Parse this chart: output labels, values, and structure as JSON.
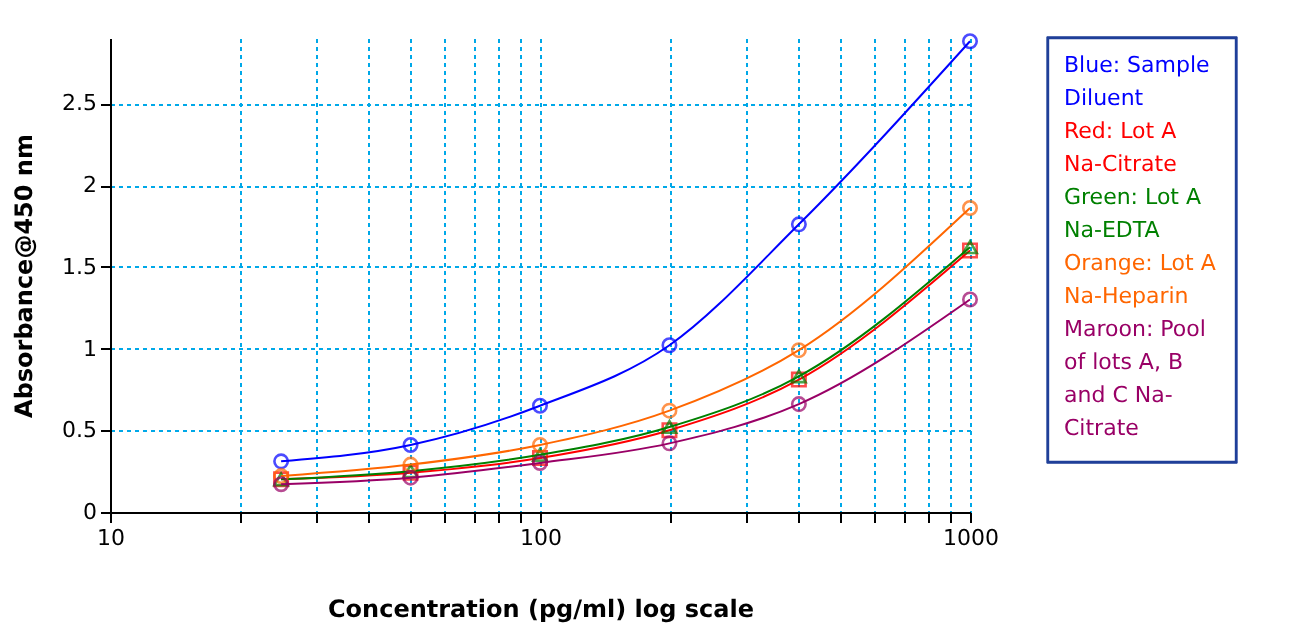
{
  "chart_data": {
    "type": "line",
    "xlabel": "Concentration (pg/ml) log scale",
    "ylabel": "Absorbance@450 nm",
    "x": [
      25,
      50,
      100,
      200,
      400,
      1000
    ],
    "series": [
      {
        "name": "Blue: Sample Diluent",
        "color": "#0000ff",
        "marker": "circle",
        "values": [
          0.31,
          0.41,
          0.65,
          1.02,
          1.76,
          2.88
        ]
      },
      {
        "name": "Red: Lot A Na-Citrate",
        "color": "#ff0000",
        "marker": "square",
        "values": [
          0.2,
          0.24,
          0.33,
          0.5,
          0.81,
          1.6
        ]
      },
      {
        "name": "Green: Lot A Na-EDTA",
        "color": "#008000",
        "marker": "triangle",
        "values": [
          0.2,
          0.25,
          0.35,
          0.52,
          0.83,
          1.62
        ]
      },
      {
        "name": "Orange: Lot A Na-Heparin",
        "color": "#ff6600",
        "marker": "circle",
        "values": [
          0.22,
          0.29,
          0.41,
          0.62,
          0.99,
          1.86
        ]
      },
      {
        "name": "Maroon: Pool of lots A, B and C Na-Citrate",
        "color": "#990066",
        "marker": "circle",
        "values": [
          0.17,
          0.21,
          0.3,
          0.42,
          0.66,
          1.3
        ]
      }
    ],
    "log": "x",
    "xlim": [
      10,
      1000
    ],
    "xticks": [
      10,
      {
        "value": 20,
        "label": null
      },
      {
        "value": 30,
        "label": null
      },
      {
        "value": 40,
        "label": null
      },
      {
        "value": 50,
        "label": null
      },
      {
        "value": 60,
        "label": null
      },
      {
        "value": 70,
        "label": null
      },
      {
        "value": 80,
        "label": null
      },
      {
        "value": 90,
        "label": null
      },
      100,
      {
        "value": 200,
        "label": null
      },
      {
        "value": 300,
        "label": null
      },
      {
        "value": 400,
        "label": null
      },
      {
        "value": 500,
        "label": null
      },
      {
        "value": 600,
        "label": null
      },
      {
        "value": 700,
        "label": null
      },
      {
        "value": 800,
        "label": null
      },
      {
        "value": 900,
        "label": null
      },
      1000
    ],
    "ylim": [
      0,
      2.9
    ],
    "yticks": [
      0,
      0.5,
      1,
      1.5,
      2,
      2.5
    ],
    "grid": true,
    "line_style": "solid"
  }
}
